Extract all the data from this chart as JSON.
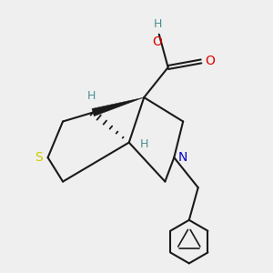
{
  "bg_color": "#efefef",
  "atom_colors": {
    "C": "#1a1a1a",
    "O": "#dd0000",
    "N": "#0000cc",
    "S": "#cccc00",
    "H": "#4a9090"
  },
  "bond_color": "#1a1a1a",
  "bond_lw": 1.5
}
